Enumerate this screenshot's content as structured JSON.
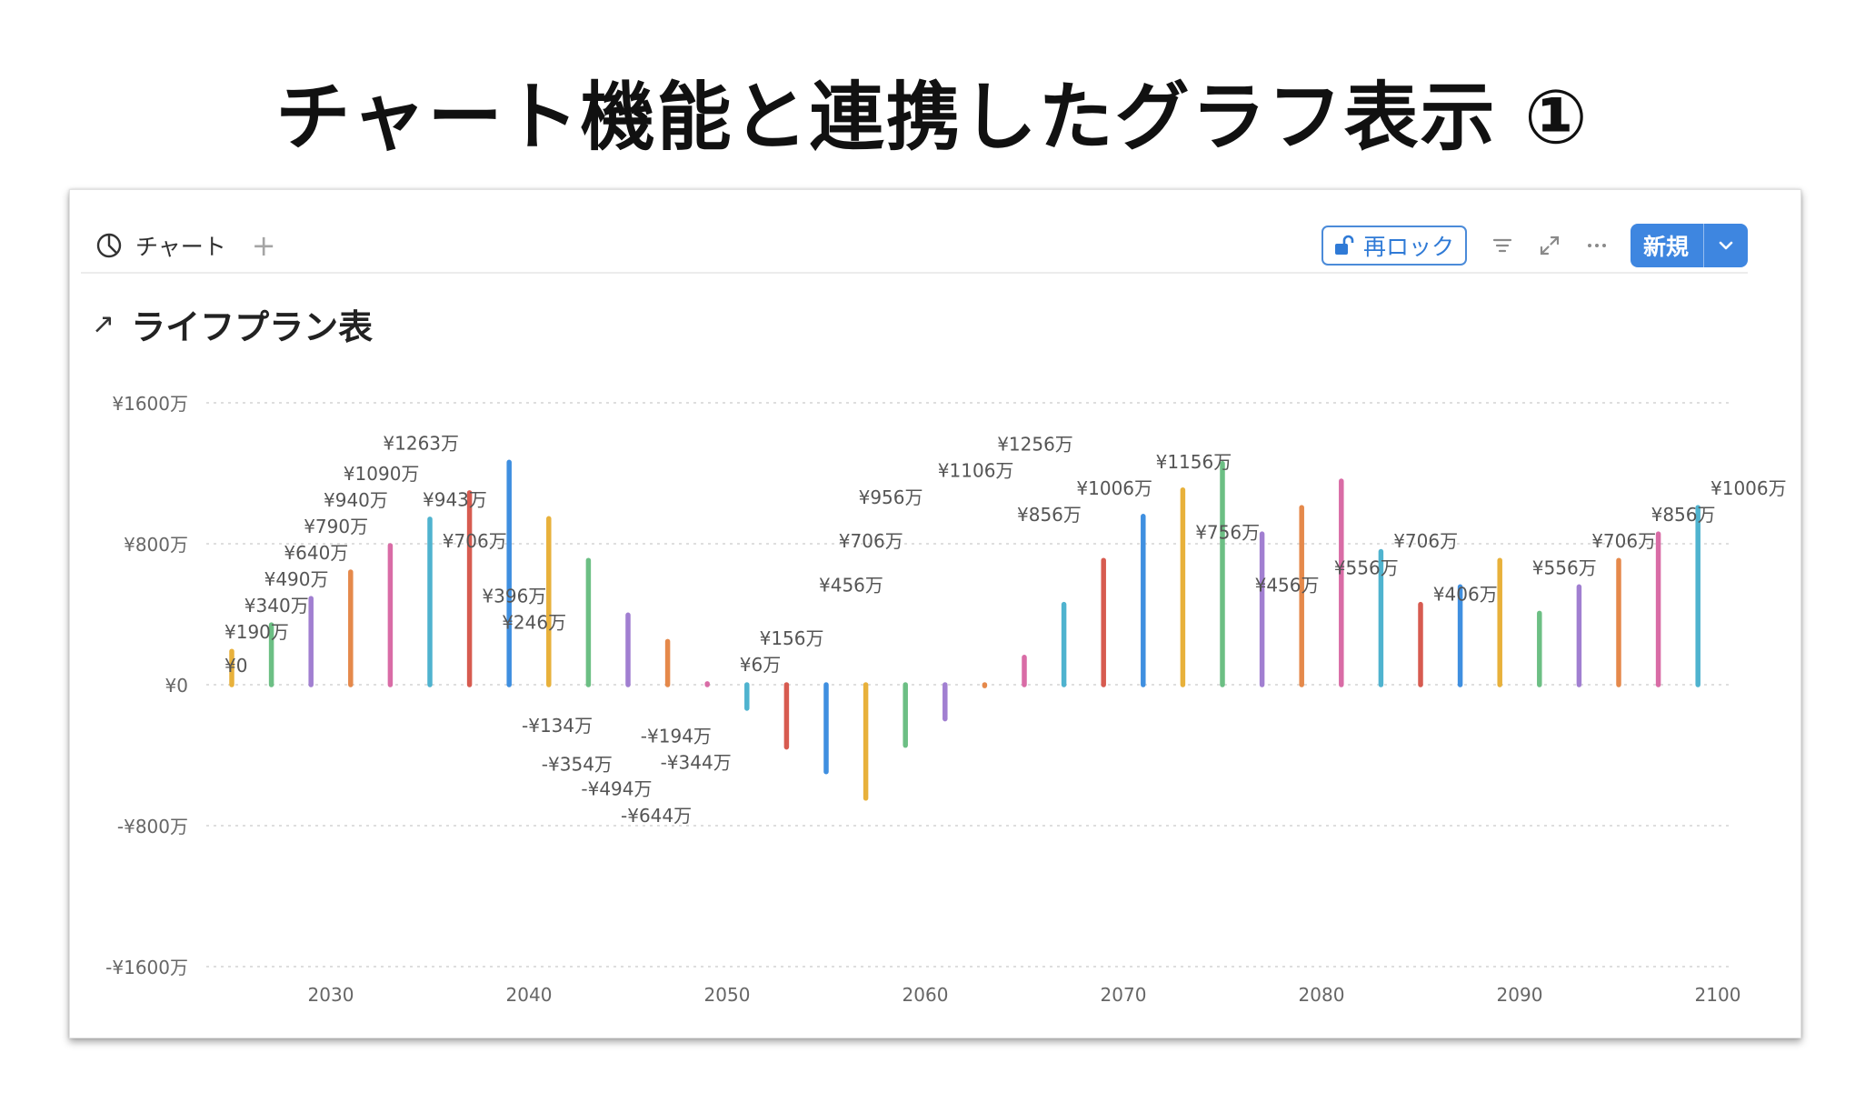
{
  "slide": {
    "title": "チャート機能と連携したグラフ表示 ①"
  },
  "viewbar": {
    "tab_label": "チャート",
    "tab_icon": "pie-chart-icon",
    "add_label": "+",
    "relock_label": "再ロック",
    "relock_icon": "unlock-icon",
    "new_label": "新規"
  },
  "chart_heading": {
    "arrow": "↗",
    "title": "ライフプラン表"
  },
  "colors": {
    "accent": "#3e86e0",
    "palette": [
      "#e8b13b",
      "#6cbf84",
      "#a17fd1",
      "#e5894b",
      "#d96ca6",
      "#4fb3cf",
      "#d75b50",
      "#3f8fe0"
    ]
  },
  "chart_data": {
    "type": "bar",
    "x_start": 2025,
    "x_end": 2100,
    "values": [
      190,
      340,
      490,
      640,
      790,
      940,
      1090,
      1263,
      943,
      706,
      396,
      246,
      6,
      -134,
      -354,
      -494,
      -644,
      -344,
      -194,
      -6,
      156,
      456,
      706,
      956,
      1106,
      1256,
      856,
      1006,
      1156,
      756,
      456,
      556,
      706,
      406,
      556,
      706,
      856,
      1006
    ],
    "ylim": [
      -1600,
      1600
    ],
    "y_ticks": [
      1600,
      800,
      0,
      -800,
      -1600
    ],
    "y_tick_labels": [
      "¥1600万",
      "¥800万",
      "¥0",
      "-¥800万",
      "-¥1600万"
    ],
    "x_ticks": [
      2030,
      2040,
      2050,
      2060,
      2070,
      2080,
      2090,
      2100
    ],
    "x_tick_labels": [
      "2030",
      "2040",
      "2050",
      "2060",
      "2070",
      "2080",
      "2090",
      "2100"
    ],
    "data_labels": [
      {
        "year": 2025,
        "value": 0,
        "text": "¥0"
      },
      {
        "year": 2025,
        "value": 190,
        "text": "¥190万"
      },
      {
        "year": 2026,
        "value": 340,
        "text": "¥340万"
      },
      {
        "year": 2027,
        "value": 490,
        "text": "¥490万"
      },
      {
        "year": 2028,
        "value": 640,
        "text": "¥640万"
      },
      {
        "year": 2029,
        "value": 790,
        "text": "¥790万"
      },
      {
        "year": 2030,
        "value": 940,
        "text": "¥940万"
      },
      {
        "year": 2031,
        "value": 1090,
        "text": "¥1090万"
      },
      {
        "year": 2033,
        "value": 1263,
        "text": "¥1263万"
      },
      {
        "year": 2035,
        "value": 943,
        "text": "¥943万"
      },
      {
        "year": 2036,
        "value": 706,
        "text": "¥706万"
      },
      {
        "year": 2038,
        "value": 396,
        "text": "¥396万"
      },
      {
        "year": 2039,
        "value": 246,
        "text": "¥246万"
      },
      {
        "year": 2040,
        "value": -134,
        "text": "-¥134万"
      },
      {
        "year": 2041,
        "value": -354,
        "text": "-¥354万"
      },
      {
        "year": 2043,
        "value": -494,
        "text": "-¥494万"
      },
      {
        "year": 2045,
        "value": -644,
        "text": "-¥644万"
      },
      {
        "year": 2046,
        "value": -194,
        "text": "-¥194万"
      },
      {
        "year": 2047,
        "value": -344,
        "text": "-¥344万"
      },
      {
        "year": 2051,
        "value": 6,
        "text": "¥6万"
      },
      {
        "year": 2052,
        "value": 156,
        "text": "¥156万"
      },
      {
        "year": 2055,
        "value": 456,
        "text": "¥456万"
      },
      {
        "year": 2056,
        "value": 706,
        "text": "¥706万"
      },
      {
        "year": 2057,
        "value": 956,
        "text": "¥956万"
      },
      {
        "year": 2061,
        "value": 1106,
        "text": "¥1106万"
      },
      {
        "year": 2064,
        "value": 1256,
        "text": "¥1256万"
      },
      {
        "year": 2065,
        "value": 856,
        "text": "¥856万"
      },
      {
        "year": 2068,
        "value": 1006,
        "text": "¥1006万"
      },
      {
        "year": 2072,
        "value": 1156,
        "text": "¥1156万"
      },
      {
        "year": 2074,
        "value": 756,
        "text": "¥756万"
      },
      {
        "year": 2077,
        "value": 456,
        "text": "¥456万"
      },
      {
        "year": 2081,
        "value": 556,
        "text": "¥556万"
      },
      {
        "year": 2084,
        "value": 706,
        "text": "¥706万"
      },
      {
        "year": 2086,
        "value": 406,
        "text": "¥406万"
      },
      {
        "year": 2091,
        "value": 556,
        "text": "¥556万"
      },
      {
        "year": 2094,
        "value": 706,
        "text": "¥706万"
      },
      {
        "year": 2097,
        "value": 856,
        "text": "¥856万"
      },
      {
        "year": 2100,
        "value": 1006,
        "text": "¥1006万"
      }
    ],
    "grid": true,
    "title": "ライフプラン表"
  }
}
